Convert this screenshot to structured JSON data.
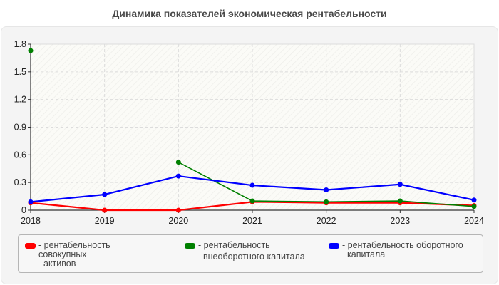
{
  "header": {
    "title": "Динамика показателей экономическая рентабельности"
  },
  "legend": {
    "items": [
      {
        "label_line1": "- рентабельность совокупных",
        "label_line2": "активов",
        "color": "#ff0000"
      },
      {
        "label_line1": "- рентабельность",
        "label_line2": "внеоборотного капитала",
        "color": "#008000"
      },
      {
        "label_line1": "- рентабельность оборотного",
        "label_line2": "капитала",
        "color": "#0000ff"
      }
    ]
  },
  "chart_data": {
    "type": "line",
    "title": "Динамика показателей экономическая рентабельности",
    "xlabel": "",
    "ylabel": "",
    "categories": [
      "2018",
      "2019",
      "2020",
      "2021",
      "2022",
      "2023",
      "2024"
    ],
    "yticks": [
      "0",
      "0.3",
      "0.6",
      "0.9",
      "1.2",
      "1.5",
      "1.8"
    ],
    "ylim": [
      0,
      1.8
    ],
    "grid": true,
    "legend_position": "bottom",
    "series": [
      {
        "name": "рентабельность совокупных активов",
        "color": "#ff0000",
        "values": [
          0.08,
          0.0,
          0.0,
          0.09,
          0.08,
          0.08,
          0.05
        ]
      },
      {
        "name": "рентабельность внеоборотного капитала",
        "color": "#008000",
        "values": [
          1.73,
          null,
          0.52,
          0.1,
          0.09,
          0.1,
          0.04
        ]
      },
      {
        "name": "рентабельность оборотного капитала",
        "color": "#0000ff",
        "values": [
          0.09,
          0.17,
          0.37,
          0.27,
          0.22,
          0.28,
          0.11
        ]
      }
    ]
  }
}
